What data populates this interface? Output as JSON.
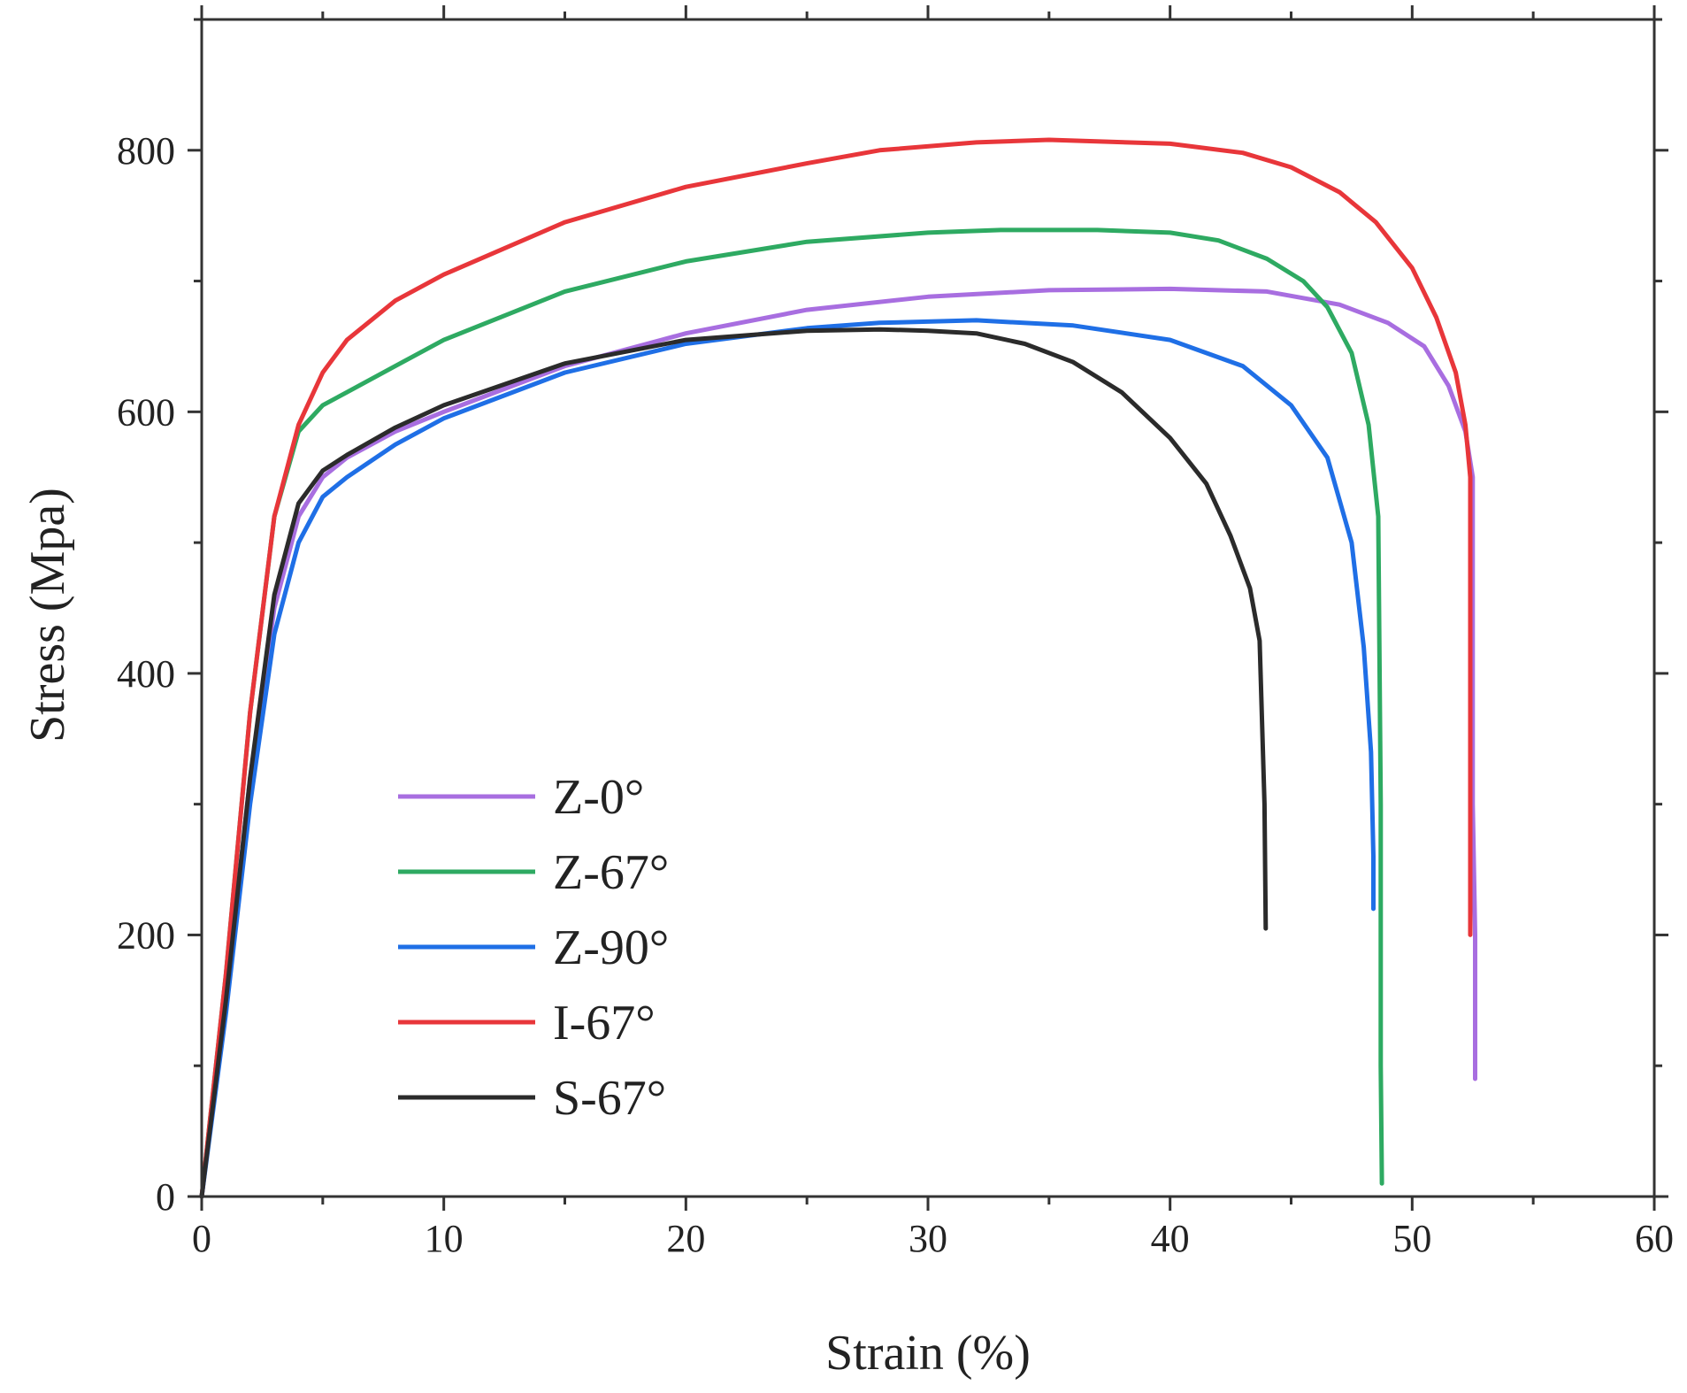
{
  "chart_data": {
    "type": "line",
    "title": "",
    "xlabel": "Strain (%)",
    "ylabel": "Stress (Mpa)",
    "xlim": [
      0,
      60
    ],
    "ylim": [
      0,
      900
    ],
    "x_ticks": [
      0,
      10,
      20,
      30,
      40,
      50,
      60
    ],
    "y_ticks": [
      0,
      200,
      400,
      600,
      800
    ],
    "x_tick_labels": [
      "0",
      "10",
      "20",
      "30",
      "40",
      "50",
      "60"
    ],
    "y_tick_labels": [
      "0",
      "200",
      "400",
      "600",
      "800"
    ],
    "grid": false,
    "legend_position": "lower-left",
    "series": [
      {
        "name": "Z-0°",
        "color": "#a86ee0",
        "x": [
          0,
          1,
          2,
          3,
          4,
          5,
          6,
          8,
          10,
          15,
          20,
          25,
          30,
          35,
          40,
          44,
          47,
          49,
          50.5,
          51.5,
          52.2,
          52.5,
          52.5,
          52.6,
          52.6
        ],
        "y": [
          0,
          150,
          320,
          450,
          520,
          550,
          565,
          585,
          600,
          635,
          660,
          678,
          688,
          693,
          694,
          692,
          682,
          668,
          650,
          620,
          585,
          550,
          300,
          200,
          90
        ]
      },
      {
        "name": "Z-67°",
        "color": "#2eaa62",
        "x": [
          0,
          1,
          2,
          3,
          4,
          5,
          6,
          8,
          10,
          15,
          20,
          25,
          30,
          33,
          37,
          40,
          42,
          44,
          45.5,
          46.5,
          47.5,
          48.2,
          48.6,
          48.7,
          48.7,
          48.75
        ],
        "y": [
          0,
          170,
          370,
          520,
          585,
          605,
          615,
          635,
          655,
          692,
          715,
          730,
          737,
          739,
          739,
          737,
          731,
          717,
          700,
          680,
          645,
          590,
          520,
          300,
          100,
          10
        ]
      },
      {
        "name": "Z-90°",
        "color": "#1f6fe6",
        "x": [
          0,
          1,
          2,
          3,
          4,
          5,
          6,
          8,
          10,
          15,
          20,
          25,
          28,
          32,
          36,
          40,
          43,
          45,
          46.5,
          47.5,
          48,
          48.3,
          48.4,
          48.4
        ],
        "y": [
          0,
          140,
          300,
          430,
          500,
          535,
          550,
          575,
          595,
          630,
          652,
          664,
          668,
          670,
          666,
          655,
          635,
          605,
          565,
          500,
          420,
          340,
          260,
          220
        ]
      },
      {
        "name": "I-67°",
        "color": "#e8363a",
        "x": [
          0,
          1,
          2,
          3,
          4,
          5,
          6,
          8,
          10,
          15,
          20,
          25,
          28,
          32,
          35,
          40,
          43,
          45,
          47,
          48.5,
          50,
          51,
          51.8,
          52.2,
          52.4,
          52.4
        ],
        "y": [
          0,
          170,
          370,
          520,
          590,
          630,
          655,
          685,
          705,
          745,
          772,
          790,
          800,
          806,
          808,
          805,
          798,
          787,
          768,
          745,
          710,
          672,
          630,
          590,
          550,
          200
        ]
      },
      {
        "name": "S-67°",
        "color": "#2b2b2b",
        "x": [
          0,
          1,
          2,
          3,
          4,
          5,
          6,
          8,
          10,
          15,
          20,
          25,
          28,
          30,
          32,
          34,
          36,
          38,
          40,
          41.5,
          42.5,
          43.3,
          43.7,
          43.9,
          43.95
        ],
        "y": [
          0,
          150,
          320,
          460,
          530,
          555,
          567,
          588,
          605,
          637,
          655,
          662,
          663,
          662,
          660,
          652,
          638,
          615,
          580,
          545,
          505,
          465,
          425,
          300,
          205
        ]
      }
    ]
  }
}
